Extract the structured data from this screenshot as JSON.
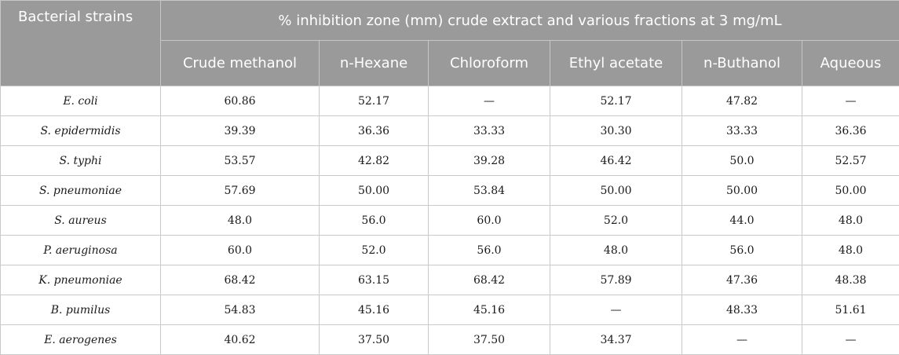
{
  "table": {
    "strain_header": "Bacterial strains",
    "group_header": "% inhibition zone (mm) crude extract and various fractions at 3 mg/mL",
    "columns": [
      "Crude methanol",
      "n-Hexane",
      "Chloroform",
      "Ethyl acetate",
      "n-Buthanol",
      "Aqueous"
    ],
    "rows": [
      {
        "strain": "E. coli",
        "values": [
          "60.86",
          "52.17",
          "—",
          "52.17",
          "47.82",
          "—"
        ]
      },
      {
        "strain": "S. epidermidis",
        "values": [
          "39.39",
          "36.36",
          "33.33",
          "30.30",
          "33.33",
          "36.36"
        ]
      },
      {
        "strain": "S. typhi",
        "values": [
          "53.57",
          "42.82",
          "39.28",
          "46.42",
          "50.0",
          "52.57"
        ]
      },
      {
        "strain": "S. pneumoniae",
        "values": [
          "57.69",
          "50.00",
          "53.84",
          "50.00",
          "50.00",
          "50.00"
        ]
      },
      {
        "strain": "S. aureus",
        "values": [
          "48.0",
          "56.0",
          "60.0",
          "52.0",
          "44.0",
          "48.0"
        ]
      },
      {
        "strain": "P. aeruginosa",
        "values": [
          "60.0",
          "52.0",
          "56.0",
          "48.0",
          "56.0",
          "48.0"
        ]
      },
      {
        "strain": "K. pneumoniae",
        "values": [
          "68.42",
          "63.15",
          "68.42",
          "57.89",
          "47.36",
          "48.38"
        ]
      },
      {
        "strain": "B. pumilus",
        "values": [
          "54.83",
          "45.16",
          "45.16",
          "—",
          "48.33",
          "51.61"
        ]
      },
      {
        "strain": "E. aerogenes",
        "values": [
          "40.62",
          "37.50",
          "37.50",
          "34.37",
          "—",
          "—"
        ]
      }
    ]
  }
}
